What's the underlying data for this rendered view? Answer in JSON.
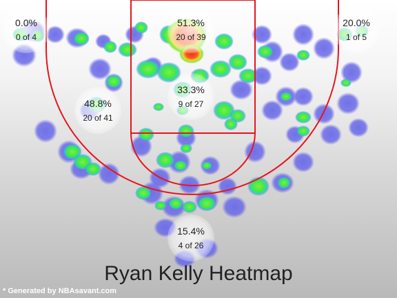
{
  "chart_data": {
    "type": "heatmap",
    "title": "Ryan Kelly Heatmap",
    "footer": "* Generated by NBAsavant.com",
    "zones": [
      {
        "id": "left-corner-three",
        "pct": "0.0%",
        "made_of": "0 of 4"
      },
      {
        "id": "paint-top",
        "pct": "51.3%",
        "made_of": "20 of 39"
      },
      {
        "id": "right-corner-three",
        "pct": "20.0%",
        "made_of": "1 of 5"
      },
      {
        "id": "left-midrange",
        "pct": "48.8%",
        "made_of": "20 of 41"
      },
      {
        "id": "paint-mid",
        "pct": "33.3%",
        "made_of": "9 of 27"
      },
      {
        "id": "top-key-three",
        "pct": "15.4%",
        "made_of": "4 of 26"
      }
    ],
    "colors": {
      "court_lines": "#e8141e",
      "cold": "#6a6ae6",
      "warm": "#47e64a",
      "hot": "#f0e442",
      "hottest": "#f2331f"
    }
  }
}
